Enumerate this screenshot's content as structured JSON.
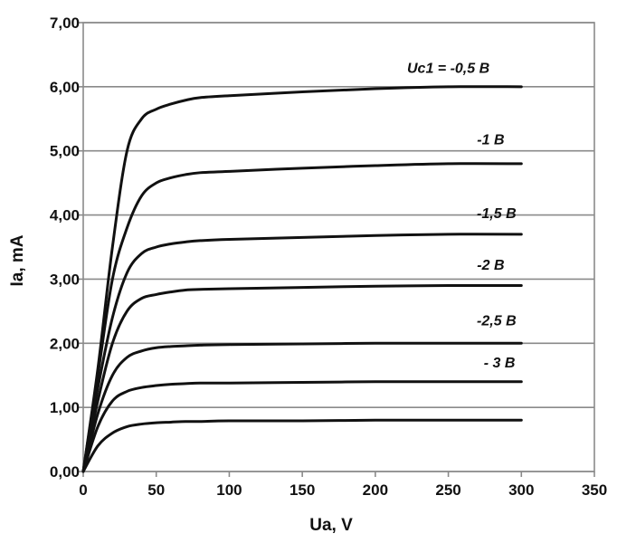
{
  "chart_data": {
    "type": "line",
    "title": "",
    "xlabel": "Ua, V",
    "ylabel": "Ia, mA",
    "xlim": [
      0,
      350
    ],
    "ylim": [
      0,
      7
    ],
    "x_ticks": [
      0,
      50,
      100,
      150,
      200,
      250,
      300,
      350
    ],
    "x_tick_labels": [
      "0",
      "50",
      "100",
      "150",
      "200",
      "250",
      "300",
      "350"
    ],
    "y_ticks": [
      0,
      1,
      2,
      3,
      4,
      5,
      6,
      7
    ],
    "y_tick_labels": [
      "0,00",
      "1,00",
      "2,00",
      "3,00",
      "4,00",
      "5,00",
      "6,00",
      "7,00"
    ],
    "grid": "horizontal",
    "legend": "none",
    "line_color": "#111111",
    "grid_color": "#8a8a8a",
    "series": [
      {
        "name": "Uc1 = -0,5 В",
        "label_x": 250,
        "label_y": 6.22,
        "points": [
          [
            0,
            0
          ],
          [
            10,
            1.6
          ],
          [
            20,
            3.5
          ],
          [
            30,
            5.0
          ],
          [
            40,
            5.5
          ],
          [
            50,
            5.65
          ],
          [
            60,
            5.73
          ],
          [
            70,
            5.79
          ],
          [
            80,
            5.83
          ],
          [
            100,
            5.86
          ],
          [
            150,
            5.92
          ],
          [
            200,
            5.97
          ],
          [
            250,
            6.0
          ],
          [
            300,
            6.0
          ]
        ]
      },
      {
        "name": "-1 В",
        "label_x": 279,
        "label_y": 5.1,
        "points": [
          [
            0,
            0
          ],
          [
            10,
            1.5
          ],
          [
            20,
            3.0
          ],
          [
            30,
            3.8
          ],
          [
            40,
            4.3
          ],
          [
            50,
            4.5
          ],
          [
            60,
            4.58
          ],
          [
            70,
            4.63
          ],
          [
            80,
            4.66
          ],
          [
            100,
            4.68
          ],
          [
            150,
            4.73
          ],
          [
            200,
            4.77
          ],
          [
            250,
            4.8
          ],
          [
            300,
            4.8
          ]
        ]
      },
      {
        "name": "-1,5 В",
        "label_x": 283,
        "label_y": 3.95,
        "points": [
          [
            0,
            0
          ],
          [
            10,
            1.3
          ],
          [
            20,
            2.4
          ],
          [
            30,
            3.1
          ],
          [
            40,
            3.4
          ],
          [
            50,
            3.5
          ],
          [
            60,
            3.55
          ],
          [
            70,
            3.58
          ],
          [
            80,
            3.6
          ],
          [
            100,
            3.62
          ],
          [
            150,
            3.65
          ],
          [
            200,
            3.68
          ],
          [
            250,
            3.7
          ],
          [
            300,
            3.7
          ]
        ]
      },
      {
        "name": "-2 В",
        "label_x": 279,
        "label_y": 3.15,
        "points": [
          [
            0,
            0
          ],
          [
            10,
            1.1
          ],
          [
            20,
            2.0
          ],
          [
            30,
            2.5
          ],
          [
            40,
            2.7
          ],
          [
            50,
            2.76
          ],
          [
            60,
            2.8
          ],
          [
            70,
            2.83
          ],
          [
            80,
            2.84
          ],
          [
            100,
            2.85
          ],
          [
            150,
            2.87
          ],
          [
            200,
            2.89
          ],
          [
            250,
            2.9
          ],
          [
            300,
            2.9
          ]
        ]
      },
      {
        "name": "-2,5 В",
        "label_x": 283,
        "label_y": 2.28,
        "points": [
          [
            0,
            0
          ],
          [
            10,
            0.9
          ],
          [
            20,
            1.5
          ],
          [
            30,
            1.78
          ],
          [
            40,
            1.88
          ],
          [
            50,
            1.93
          ],
          [
            60,
            1.95
          ],
          [
            70,
            1.96
          ],
          [
            80,
            1.97
          ],
          [
            100,
            1.98
          ],
          [
            150,
            1.99
          ],
          [
            200,
            2.0
          ],
          [
            250,
            2.0
          ],
          [
            300,
            2.0
          ]
        ]
      },
      {
        "name": "- 3 В",
        "label_x": 285,
        "label_y": 1.62,
        "points": [
          [
            0,
            0
          ],
          [
            10,
            0.7
          ],
          [
            20,
            1.1
          ],
          [
            30,
            1.25
          ],
          [
            40,
            1.31
          ],
          [
            50,
            1.34
          ],
          [
            60,
            1.36
          ],
          [
            70,
            1.37
          ],
          [
            80,
            1.38
          ],
          [
            100,
            1.38
          ],
          [
            150,
            1.39
          ],
          [
            200,
            1.4
          ],
          [
            250,
            1.4
          ],
          [
            300,
            1.4
          ]
        ]
      },
      {
        "name": "",
        "points": [
          [
            0,
            0
          ],
          [
            10,
            0.4
          ],
          [
            20,
            0.6
          ],
          [
            30,
            0.7
          ],
          [
            40,
            0.74
          ],
          [
            50,
            0.76
          ],
          [
            60,
            0.77
          ],
          [
            70,
            0.78
          ],
          [
            80,
            0.78
          ],
          [
            100,
            0.79
          ],
          [
            150,
            0.79
          ],
          [
            200,
            0.8
          ],
          [
            250,
            0.8
          ],
          [
            300,
            0.8
          ]
        ]
      }
    ]
  }
}
